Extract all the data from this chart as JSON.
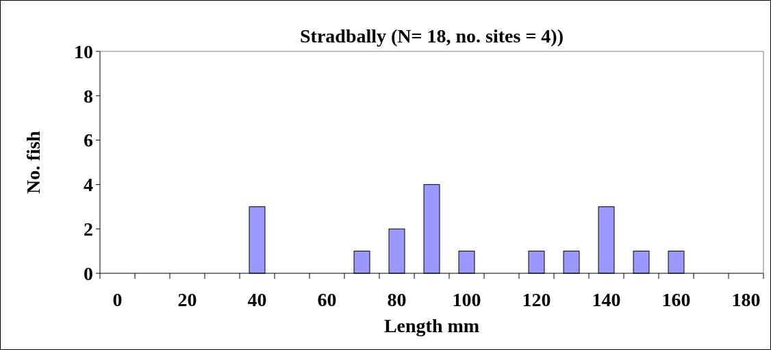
{
  "chart_data": {
    "type": "bar",
    "title": "Stradbally (N= 18, no. sites = 4))",
    "xlabel": "Length mm",
    "ylabel": "No. fish",
    "categories": [
      "0",
      null,
      "20",
      null,
      "40",
      null,
      "60",
      null,
      "80",
      null,
      "100",
      null,
      "120",
      null,
      "140",
      null,
      "160",
      null,
      "180"
    ],
    "values": [
      0,
      0,
      0,
      0,
      3,
      0,
      0,
      1,
      2,
      4,
      1,
      0,
      1,
      1,
      3,
      1,
      1,
      0,
      0
    ],
    "color": "#9999ff",
    "ylim": [
      0,
      10
    ],
    "yticks": [
      0,
      2,
      4,
      6,
      8,
      10
    ],
    "grid": false
  }
}
